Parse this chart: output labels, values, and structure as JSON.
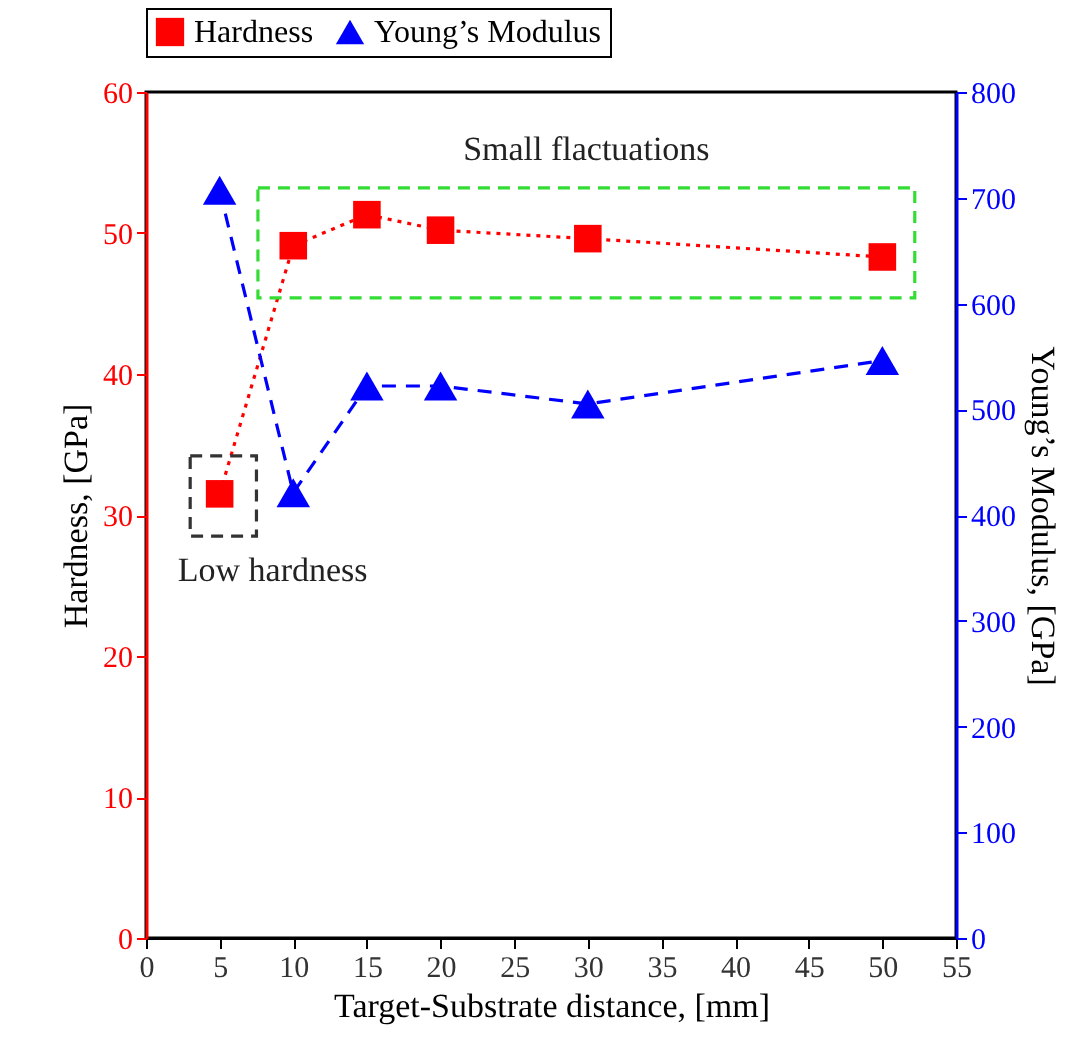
{
  "chart_data": {
    "type": "line",
    "xlabel": "Target-Substrate distance, [mm]",
    "ylabel": "Hardness, [GPa]",
    "y2label": "Young’s Modulus, [GPa]",
    "x": [
      5,
      10,
      15,
      20,
      30,
      50
    ],
    "series": [
      {
        "name": "Hardness",
        "color": "#ff0000",
        "marker": "square",
        "line_style": "dotted",
        "values": [
          31.5,
          49.1,
          51.3,
          50.2,
          49.6,
          48.3
        ]
      },
      {
        "name": "Young’s Modulus",
        "color": "#0000ff",
        "marker": "triangle",
        "line_style": "dashed",
        "axis": "y2",
        "values": [
          707,
          421,
          522,
          522,
          505,
          546
        ]
      }
    ],
    "xlim": [
      0,
      55
    ],
    "xticks": [
      0,
      5,
      10,
      15,
      20,
      25,
      30,
      35,
      40,
      45,
      50,
      55
    ],
    "ylim": [
      0,
      60
    ],
    "yticks": [
      0,
      10,
      20,
      30,
      40,
      50,
      60
    ],
    "y2lim": [
      0,
      800
    ],
    "y2ticks": [
      0,
      100,
      200,
      300,
      400,
      500,
      600,
      700,
      800
    ],
    "annotations": [
      "Small flactuations",
      "Low hardness"
    ],
    "grid": false,
    "legend": "top"
  }
}
